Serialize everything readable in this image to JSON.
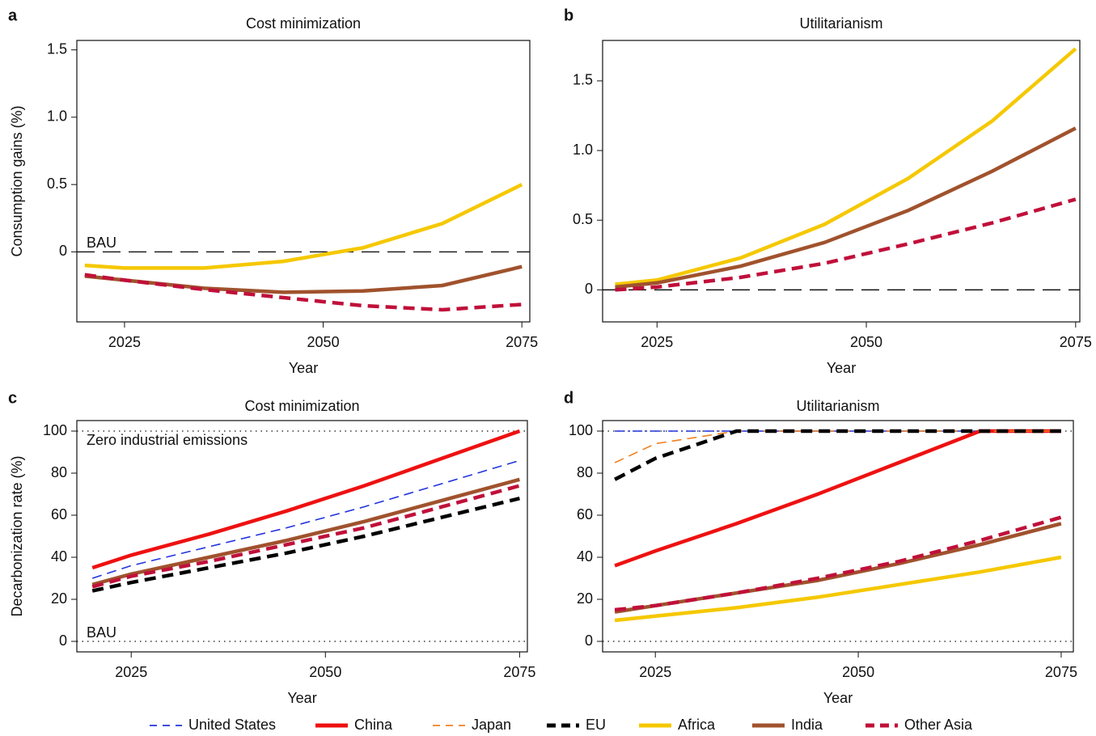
{
  "chart_data": [
    {
      "type": "line",
      "label": "a",
      "title": "Cost minimization",
      "xlabel": "Year",
      "ylabel": "Consumption gains (%)",
      "x": [
        2020,
        2025,
        2035,
        2045,
        2055,
        2065,
        2075
      ],
      "xlim": [
        2019,
        2076
      ],
      "xticks": [
        2025,
        2050,
        2075
      ],
      "ylim": [
        -0.52,
        1.57
      ],
      "yticks": [
        0,
        0.5,
        {
          "value": 1,
          "label": "1.0"
        },
        1.5
      ],
      "hlines": [
        {
          "value": 0,
          "label": "BAU",
          "style": "dashed"
        }
      ],
      "series": [
        {
          "name": "Africa",
          "color": "#f5c800",
          "dash": "none",
          "weight": "thick",
          "values": [
            -0.1,
            -0.12,
            -0.12,
            -0.07,
            0.03,
            0.21,
            0.5
          ]
        },
        {
          "name": "India",
          "color": "#a0522d",
          "dash": "none",
          "weight": "thick",
          "values": [
            -0.18,
            -0.21,
            -0.27,
            -0.3,
            -0.29,
            -0.25,
            -0.11
          ]
        },
        {
          "name": "Other Asia",
          "color": "#c0103a",
          "dash": "long",
          "weight": "thick",
          "values": [
            -0.17,
            -0.21,
            -0.28,
            -0.34,
            -0.4,
            -0.43,
            -0.39
          ]
        }
      ]
    },
    {
      "type": "line",
      "label": "b",
      "title": "Utilitarianism",
      "xlabel": "Year",
      "x": [
        2020,
        2025,
        2035,
        2045,
        2055,
        2065,
        2075
      ],
      "xlim": [
        2018.5,
        2075.5
      ],
      "xticks": [
        2025,
        2050,
        2075
      ],
      "ylim": [
        -0.23,
        1.79
      ],
      "yticks": [
        0,
        0.5,
        {
          "value": 1,
          "label": "1.0"
        },
        1.5
      ],
      "hlines": [
        {
          "value": 0,
          "style": "dashed"
        }
      ],
      "series": [
        {
          "name": "Africa",
          "color": "#f5c800",
          "dash": "none",
          "weight": "thick",
          "values": [
            0.04,
            0.07,
            0.23,
            0.47,
            0.8,
            1.21,
            1.73
          ]
        },
        {
          "name": "India",
          "color": "#a0522d",
          "dash": "none",
          "weight": "thick",
          "values": [
            0.02,
            0.05,
            0.17,
            0.34,
            0.57,
            0.85,
            1.16
          ]
        },
        {
          "name": "Other Asia",
          "color": "#c0103a",
          "dash": "long",
          "weight": "thick",
          "values": [
            0.0,
            0.02,
            0.09,
            0.19,
            0.33,
            0.48,
            0.65
          ]
        }
      ]
    },
    {
      "type": "line",
      "label": "c",
      "title": "Cost minimization",
      "xlabel": "Year",
      "ylabel": "Decarbonization rate (%)",
      "x": [
        2020,
        2025,
        2035,
        2045,
        2055,
        2065,
        2075
      ],
      "xlim": [
        2018,
        2076
      ],
      "xticks": [
        2025,
        2050,
        2075
      ],
      "ylim": [
        -5,
        105
      ],
      "yticks": [
        0,
        20,
        40,
        60,
        80,
        100
      ],
      "hlines": [
        {
          "value": 100,
          "label": "Zero industrial emissions",
          "style": "dotted"
        },
        {
          "value": 0,
          "label": "BAU",
          "style": "dotted"
        }
      ],
      "series": [
        {
          "name": "China",
          "color": "#ee1111",
          "dash": "none",
          "weight": "thick",
          "values": [
            35,
            41,
            51,
            62,
            74,
            87,
            100
          ]
        },
        {
          "name": "United States",
          "color": "#2233dd",
          "dash": "long",
          "weight": "thin",
          "values": [
            30,
            36,
            45,
            54,
            64,
            75,
            86
          ]
        },
        {
          "name": "India",
          "color": "#a0522d",
          "dash": "none",
          "weight": "thick",
          "values": [
            27,
            32,
            40,
            48,
            57,
            67,
            77
          ]
        },
        {
          "name": "Other Asia",
          "color": "#c0103a",
          "dash": "long",
          "weight": "thick",
          "values": [
            26,
            31,
            38,
            46,
            54,
            64,
            74
          ]
        },
        {
          "name": "EU",
          "color": "#000000",
          "dash": "long",
          "weight": "thick",
          "values": [
            24,
            28,
            35,
            42,
            50,
            59,
            68
          ]
        }
      ]
    },
    {
      "type": "line",
      "label": "d",
      "title": "Utilitarianism",
      "xlabel": "Year",
      "x": [
        2020,
        2025,
        2035,
        2045,
        2055,
        2065,
        2075
      ],
      "xlim": [
        2018.5,
        2076.5
      ],
      "xticks": [
        2025,
        2050,
        2075
      ],
      "ylim": [
        -5,
        105
      ],
      "yticks": [
        0,
        20,
        40,
        60,
        80,
        100
      ],
      "hlines": [
        {
          "value": 100,
          "style": "dotted"
        },
        {
          "value": 0,
          "style": "dotted"
        }
      ],
      "series": [
        {
          "name": "United States",
          "color": "#2233dd",
          "dash": "dashdot",
          "weight": "thin",
          "values": [
            100,
            100,
            100,
            100,
            100,
            100,
            100
          ]
        },
        {
          "name": "China",
          "color": "#ee1111",
          "dash": "none",
          "weight": "thick",
          "values": [
            36,
            43,
            56,
            70,
            85,
            100,
            100
          ]
        },
        {
          "name": "Japan",
          "color": "#f08020",
          "dash": "long",
          "weight": "thin",
          "values": [
            85,
            94,
            100,
            100,
            100,
            100,
            100
          ]
        },
        {
          "name": "EU",
          "color": "#000000",
          "dash": "long",
          "weight": "thick",
          "values": [
            77,
            87,
            100,
            100,
            100,
            100,
            100
          ]
        },
        {
          "name": "Africa",
          "color": "#f5c800",
          "dash": "none",
          "weight": "thick",
          "values": [
            10,
            12,
            16,
            21,
            27,
            33,
            40
          ]
        },
        {
          "name": "India",
          "color": "#a0522d",
          "dash": "none",
          "weight": "thick",
          "values": [
            14,
            17,
            23,
            29,
            37,
            46,
            56
          ]
        },
        {
          "name": "Other Asia",
          "color": "#c0103a",
          "dash": "long",
          "weight": "thick",
          "values": [
            15,
            17,
            23,
            30,
            38,
            48,
            59
          ]
        }
      ]
    }
  ]
}
